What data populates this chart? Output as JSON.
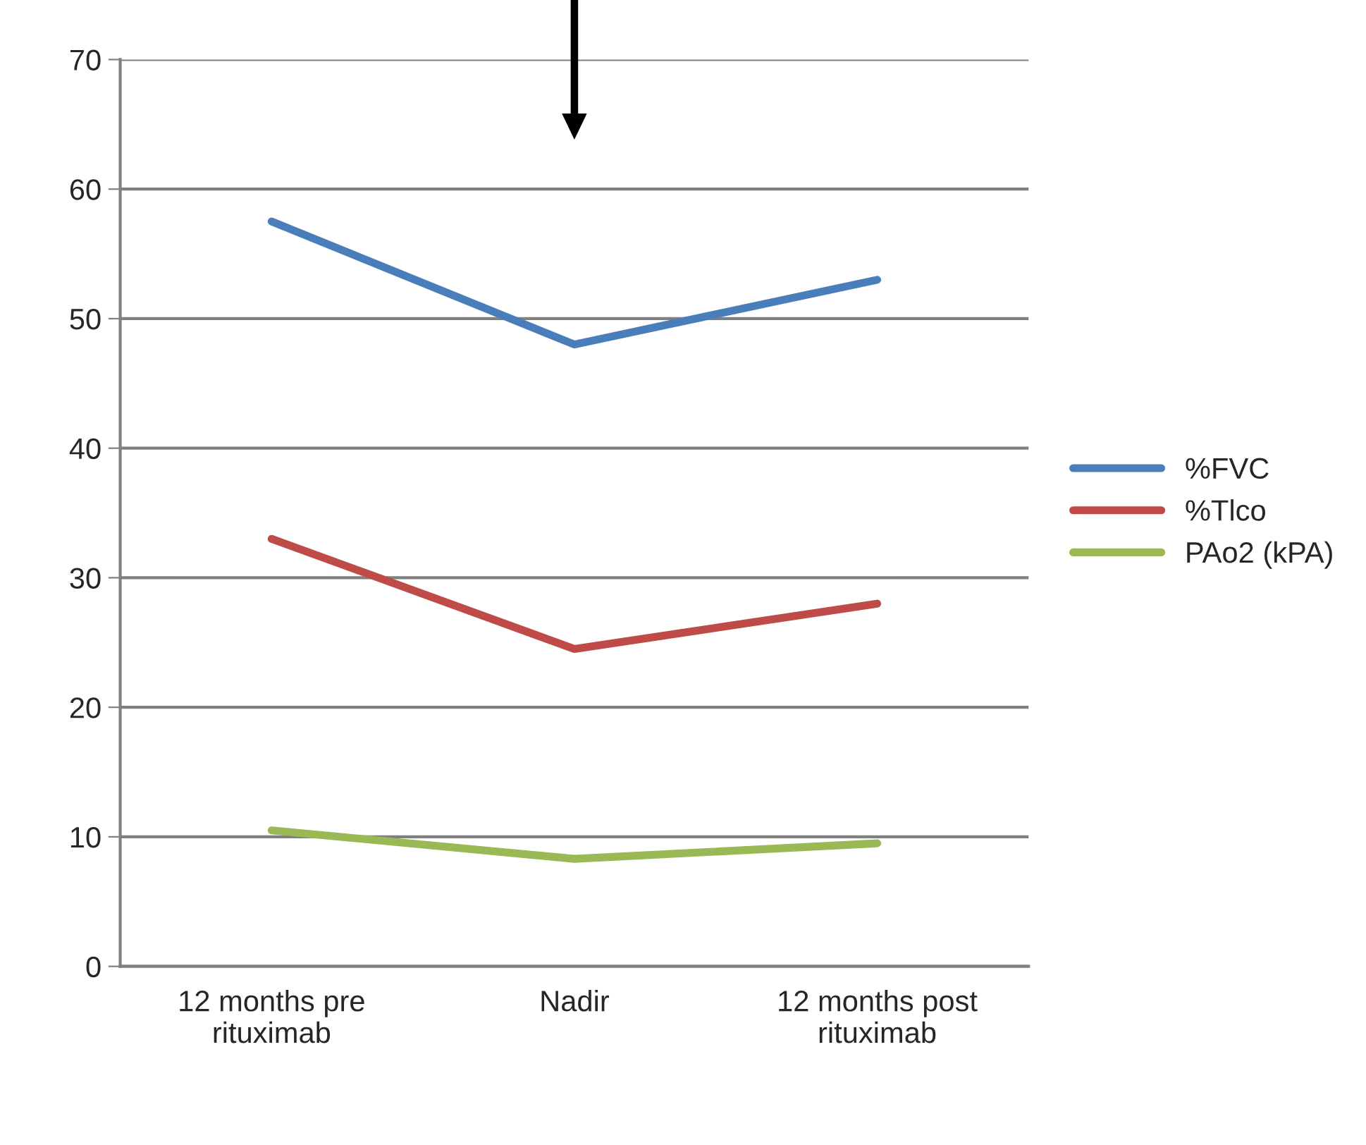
{
  "chart_data": {
    "type": "line",
    "categories": [
      "12 months pre\nrituximab",
      "Nadir",
      "12 months post\nrituximab"
    ],
    "series": [
      {
        "name": "%FVC",
        "color": "#4a7ebb",
        "values": [
          57.5,
          48,
          53
        ]
      },
      {
        "name": "%Tlco",
        "color": "#be4b48",
        "values": [
          33,
          24.5,
          28
        ]
      },
      {
        "name": "PAo2 (kPA)",
        "color": "#98b954",
        "values": [
          10.5,
          8.3,
          9.5
        ]
      }
    ],
    "ylim": [
      0,
      70
    ],
    "yticks": [
      0,
      10,
      20,
      30,
      40,
      50,
      60,
      70
    ],
    "grid": "y",
    "legend": "right",
    "marker": "none",
    "line_style": "solid"
  }
}
